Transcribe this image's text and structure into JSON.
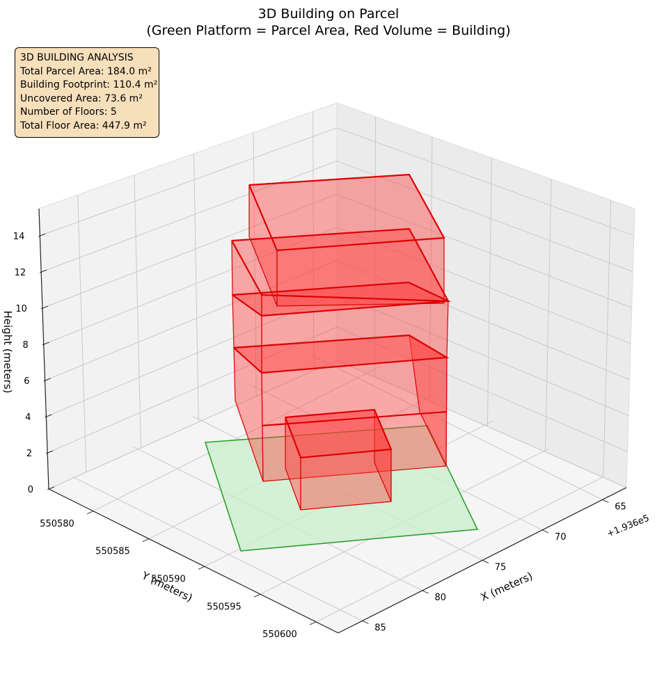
{
  "chart_data": {
    "type": "3d-box",
    "title_line1": "3D Building on Parcel",
    "title_line2": "(Green Platform = Parcel Area, Red Volume = Building)",
    "xlabel": "X (meters)",
    "ylabel": "Y (meters)",
    "zlabel": "Height (meters)",
    "x_offset_label": "+1.936e5",
    "x_ticks": [
      65,
      70,
      75,
      80,
      85
    ],
    "y_ticks": [
      550580,
      550585,
      550590,
      550595,
      550600
    ],
    "z_ticks": [
      0,
      2,
      4,
      6,
      8,
      10,
      12,
      14
    ],
    "colors": {
      "parcel_fill": "#c8eecb",
      "parcel_edge": "#2ca02c",
      "building_fill": "#ff3b3b",
      "building_edge": "#dd0000",
      "info_bg": "#f6dfbb"
    },
    "info_box": {
      "heading": "3D BUILDING ANALYSIS",
      "total_parcel_area": "Total Parcel Area: 184.0 m²",
      "building_footprint": "Building Footprint: 110.4 m²",
      "uncovered_area": "Uncovered Area: 73.6 m²",
      "number_of_floors": "Number of Floors: 5",
      "total_floor_area": "Total Floor Area: 447.9 m²"
    }
  }
}
